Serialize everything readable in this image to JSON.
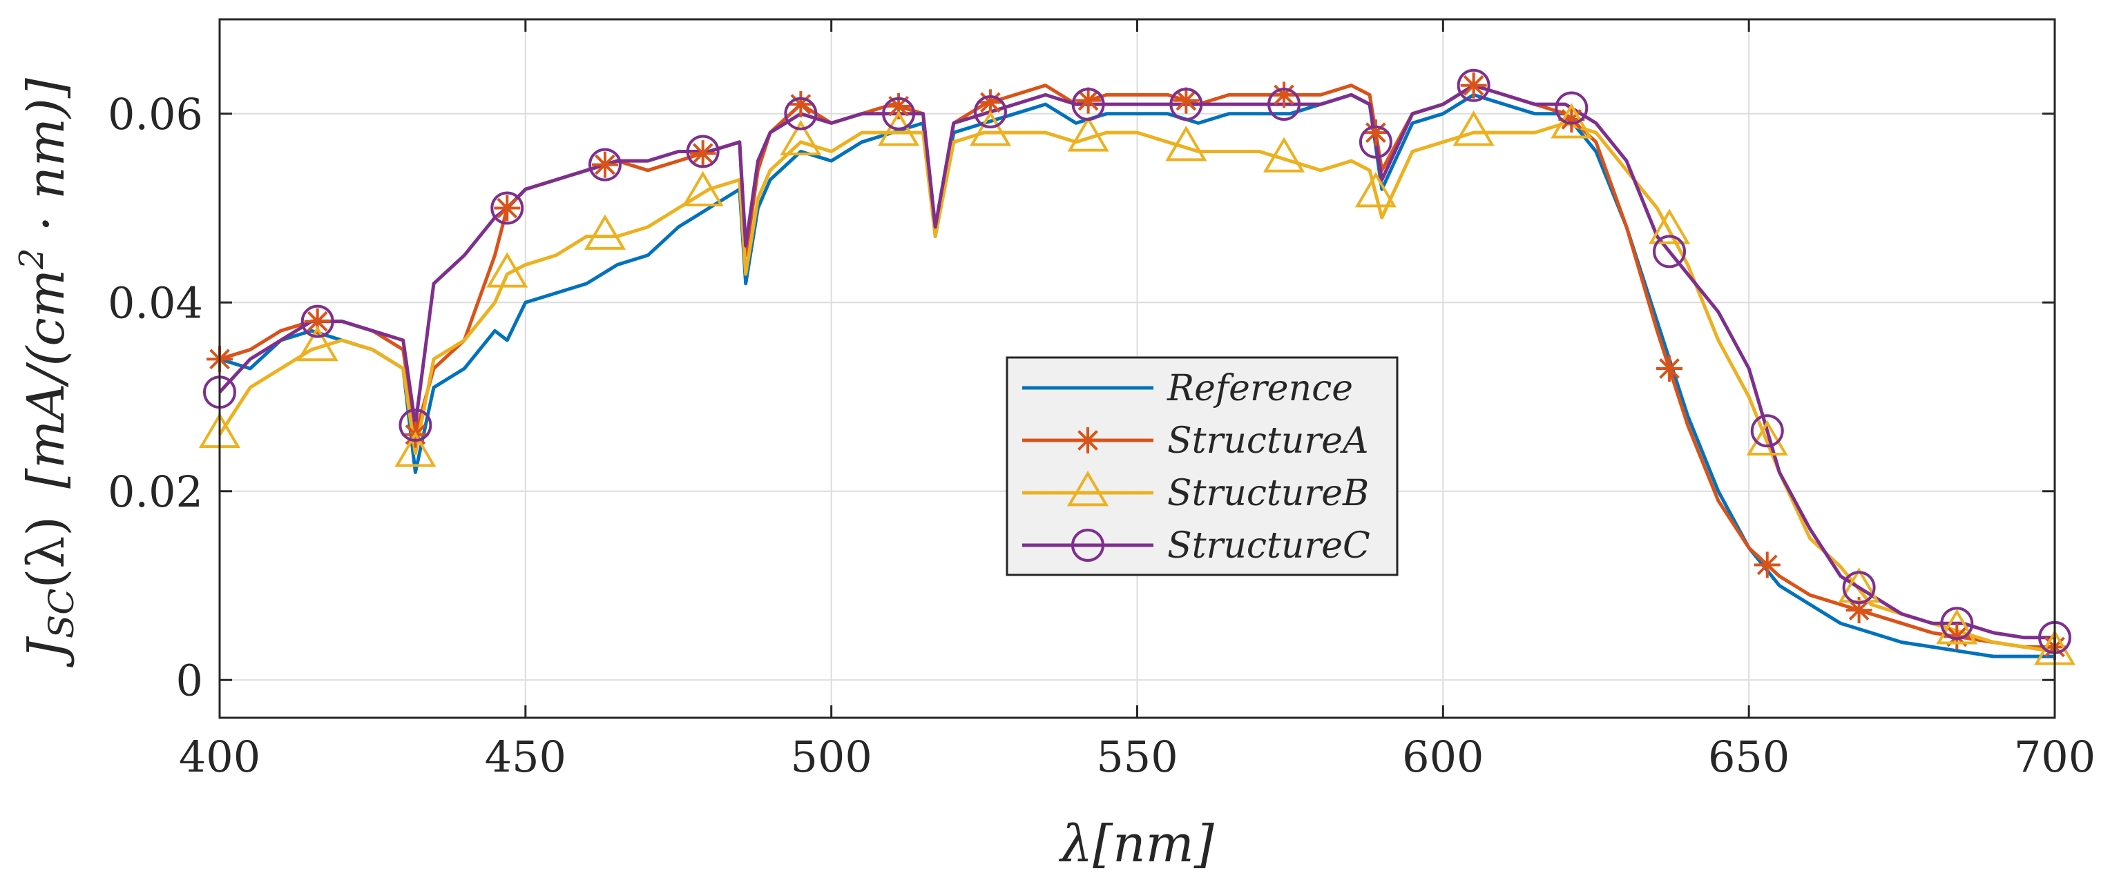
{
  "chart_data": {
    "type": "line",
    "xlabel": "λ[nm]",
    "ylabel": "J_SC(λ)  [mA/(cm²·nm)]",
    "ylabel_parts": {
      "main": "J",
      "sub": "SC",
      "arg": "(λ)",
      "unit_open": "[mA/(cm",
      "unit_sup": "2",
      "unit_close": " · nm)]"
    },
    "xlim": [
      400,
      700
    ],
    "ylim": [
      -0.004,
      0.07
    ],
    "xticks": [
      400,
      450,
      500,
      550,
      600,
      650,
      700
    ],
    "xtick_labels": [
      "400",
      "450",
      "500",
      "550",
      "600",
      "650",
      "700"
    ],
    "yticks": [
      0,
      0.02,
      0.04,
      0.06
    ],
    "ytick_labels": [
      "0",
      "0.02",
      "0.04",
      "0.06"
    ],
    "grid": true,
    "legend_position": "center-right",
    "x": [
      400,
      405,
      410,
      415,
      420,
      425,
      430,
      432,
      435,
      440,
      445,
      447,
      450,
      455,
      460,
      465,
      470,
      475,
      480,
      485,
      486,
      488,
      490,
      495,
      500,
      505,
      510,
      515,
      517,
      520,
      525,
      530,
      535,
      540,
      545,
      550,
      555,
      560,
      565,
      570,
      575,
      580,
      585,
      588,
      590,
      595,
      600,
      605,
      610,
      615,
      620,
      625,
      630,
      635,
      640,
      645,
      650,
      655,
      660,
      665,
      670,
      675,
      680,
      685,
      690,
      695,
      700
    ],
    "series": [
      {
        "name": "Reference",
        "color": "#0072BD",
        "marker": "none",
        "values": [
          0.034,
          0.033,
          0.036,
          0.037,
          0.036,
          0.035,
          0.033,
          0.022,
          0.031,
          0.033,
          0.037,
          0.036,
          0.04,
          0.041,
          0.042,
          0.044,
          0.045,
          0.048,
          0.05,
          0.052,
          0.042,
          0.05,
          0.053,
          0.056,
          0.055,
          0.057,
          0.058,
          0.059,
          0.047,
          0.058,
          0.059,
          0.06,
          0.061,
          0.059,
          0.06,
          0.06,
          0.06,
          0.059,
          0.06,
          0.06,
          0.06,
          0.061,
          0.062,
          0.061,
          0.052,
          0.059,
          0.06,
          0.062,
          0.061,
          0.06,
          0.06,
          0.056,
          0.048,
          0.038,
          0.028,
          0.02,
          0.014,
          0.01,
          0.008,
          0.006,
          0.005,
          0.004,
          0.0035,
          0.003,
          0.0025,
          0.0025,
          0.0025
        ]
      },
      {
        "name": "StructureA",
        "color": "#D95319",
        "marker": "asterisk",
        "values": [
          0.034,
          0.035,
          0.037,
          0.038,
          0.038,
          0.037,
          0.035,
          0.026,
          0.033,
          0.036,
          0.045,
          0.05,
          0.052,
          0.053,
          0.054,
          0.055,
          0.054,
          0.055,
          0.056,
          0.057,
          0.045,
          0.054,
          0.058,
          0.061,
          0.059,
          0.06,
          0.061,
          0.06,
          0.048,
          0.059,
          0.061,
          0.062,
          0.063,
          0.061,
          0.062,
          0.062,
          0.062,
          0.061,
          0.062,
          0.062,
          0.062,
          0.062,
          0.063,
          0.062,
          0.054,
          0.06,
          0.061,
          0.063,
          0.062,
          0.061,
          0.06,
          0.057,
          0.048,
          0.037,
          0.027,
          0.019,
          0.014,
          0.011,
          0.009,
          0.008,
          0.007,
          0.006,
          0.005,
          0.0045,
          0.004,
          0.0035,
          0.0035
        ]
      },
      {
        "name": "StructureB",
        "color": "#EDB120",
        "marker": "triangle",
        "values": [
          0.026,
          0.031,
          0.033,
          0.035,
          0.036,
          0.035,
          0.033,
          0.024,
          0.034,
          0.036,
          0.04,
          0.043,
          0.044,
          0.045,
          0.047,
          0.047,
          0.048,
          0.05,
          0.052,
          0.053,
          0.043,
          0.051,
          0.054,
          0.057,
          0.056,
          0.058,
          0.058,
          0.058,
          0.047,
          0.057,
          0.058,
          0.058,
          0.058,
          0.057,
          0.058,
          0.058,
          0.057,
          0.056,
          0.056,
          0.056,
          0.055,
          0.054,
          0.055,
          0.054,
          0.049,
          0.056,
          0.057,
          0.058,
          0.058,
          0.058,
          0.059,
          0.058,
          0.054,
          0.05,
          0.044,
          0.036,
          0.03,
          0.022,
          0.015,
          0.012,
          0.008,
          0.007,
          0.006,
          0.005,
          0.004,
          0.0035,
          0.003
        ]
      },
      {
        "name": "StructureC",
        "color": "#7E2F8E",
        "marker": "circle",
        "values": [
          0.0305,
          0.034,
          0.036,
          0.038,
          0.038,
          0.037,
          0.036,
          0.027,
          0.042,
          0.045,
          0.049,
          0.05,
          0.052,
          0.053,
          0.054,
          0.055,
          0.055,
          0.056,
          0.056,
          0.057,
          0.046,
          0.055,
          0.058,
          0.06,
          0.059,
          0.06,
          0.06,
          0.06,
          0.048,
          0.059,
          0.06,
          0.061,
          0.062,
          0.061,
          0.061,
          0.061,
          0.061,
          0.061,
          0.061,
          0.061,
          0.061,
          0.061,
          0.062,
          0.061,
          0.053,
          0.06,
          0.061,
          0.063,
          0.062,
          0.061,
          0.061,
          0.059,
          0.055,
          0.047,
          0.043,
          0.039,
          0.033,
          0.022,
          0.016,
          0.011,
          0.009,
          0.007,
          0.006,
          0.006,
          0.005,
          0.0045,
          0.0045
        ]
      }
    ],
    "marker_x": [
      400,
      416,
      432,
      447,
      463,
      479,
      495,
      511,
      526,
      542,
      558,
      574,
      589,
      605,
      621,
      637,
      653,
      668,
      684,
      700
    ]
  }
}
